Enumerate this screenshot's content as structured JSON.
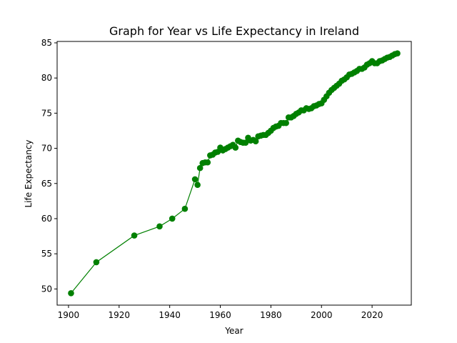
{
  "chart_data": {
    "type": "line",
    "title": "Graph for Year vs Life Expectancy in Ireland",
    "xlabel": "Year",
    "ylabel": "Life Expectancy",
    "xlim": [
      1895.5,
      2035.5
    ],
    "ylim": [
      47.7,
      85.2
    ],
    "xticks": [
      1900,
      1920,
      1940,
      1960,
      1980,
      2000,
      2020
    ],
    "yticks": [
      50,
      55,
      60,
      65,
      70,
      75,
      80,
      85
    ],
    "grid": false,
    "legend": "none",
    "marker": "circle",
    "series": [
      {
        "color": "#008000",
        "x": [
          1901,
          1911,
          1926,
          1936,
          1941,
          1946,
          1950,
          1951,
          1952,
          1953,
          1954,
          1955,
          1956,
          1957,
          1958,
          1959,
          1960,
          1961,
          1962,
          1963,
          1964,
          1965,
          1966,
          1967,
          1968,
          1969,
          1970,
          1971,
          1972,
          1973,
          1974,
          1975,
          1976,
          1977,
          1978,
          1979,
          1980,
          1981,
          1982,
          1983,
          1984,
          1985,
          1986,
          1987,
          1988,
          1989,
          1990,
          1991,
          1992,
          1993,
          1994,
          1995,
          1996,
          1997,
          1998,
          1999,
          2000,
          2001,
          2002,
          2003,
          2004,
          2005,
          2006,
          2007,
          2008,
          2009,
          2010,
          2011,
          2012,
          2013,
          2014,
          2015,
          2016,
          2017,
          2018,
          2019,
          2020,
          2021,
          2022,
          2023,
          2024,
          2025,
          2026,
          2027,
          2028,
          2029,
          2030
        ],
        "y": [
          49.4,
          53.8,
          57.6,
          58.9,
          60.0,
          61.4,
          65.6,
          64.8,
          67.2,
          67.9,
          68.0,
          68.0,
          69.0,
          69.1,
          69.4,
          69.5,
          70.1,
          69.7,
          69.9,
          70.1,
          70.3,
          70.5,
          70.1,
          71.1,
          70.9,
          70.8,
          70.8,
          71.5,
          71.1,
          71.2,
          71.0,
          71.7,
          71.8,
          71.9,
          71.9,
          72.2,
          72.5,
          72.9,
          73.1,
          73.2,
          73.6,
          73.6,
          73.6,
          74.4,
          74.4,
          74.6,
          74.9,
          75.1,
          75.4,
          75.4,
          75.7,
          75.6,
          75.7,
          76.0,
          76.1,
          76.3,
          76.4,
          76.9,
          77.4,
          77.9,
          78.3,
          78.6,
          78.9,
          79.2,
          79.6,
          79.8,
          80.1,
          80.5,
          80.6,
          80.8,
          81.0,
          81.3,
          81.3,
          81.5,
          81.9,
          82.1,
          82.4,
          82.1,
          82.1,
          82.4,
          82.5,
          82.7,
          82.9,
          83.0,
          83.2,
          83.4,
          83.5
        ]
      }
    ]
  }
}
